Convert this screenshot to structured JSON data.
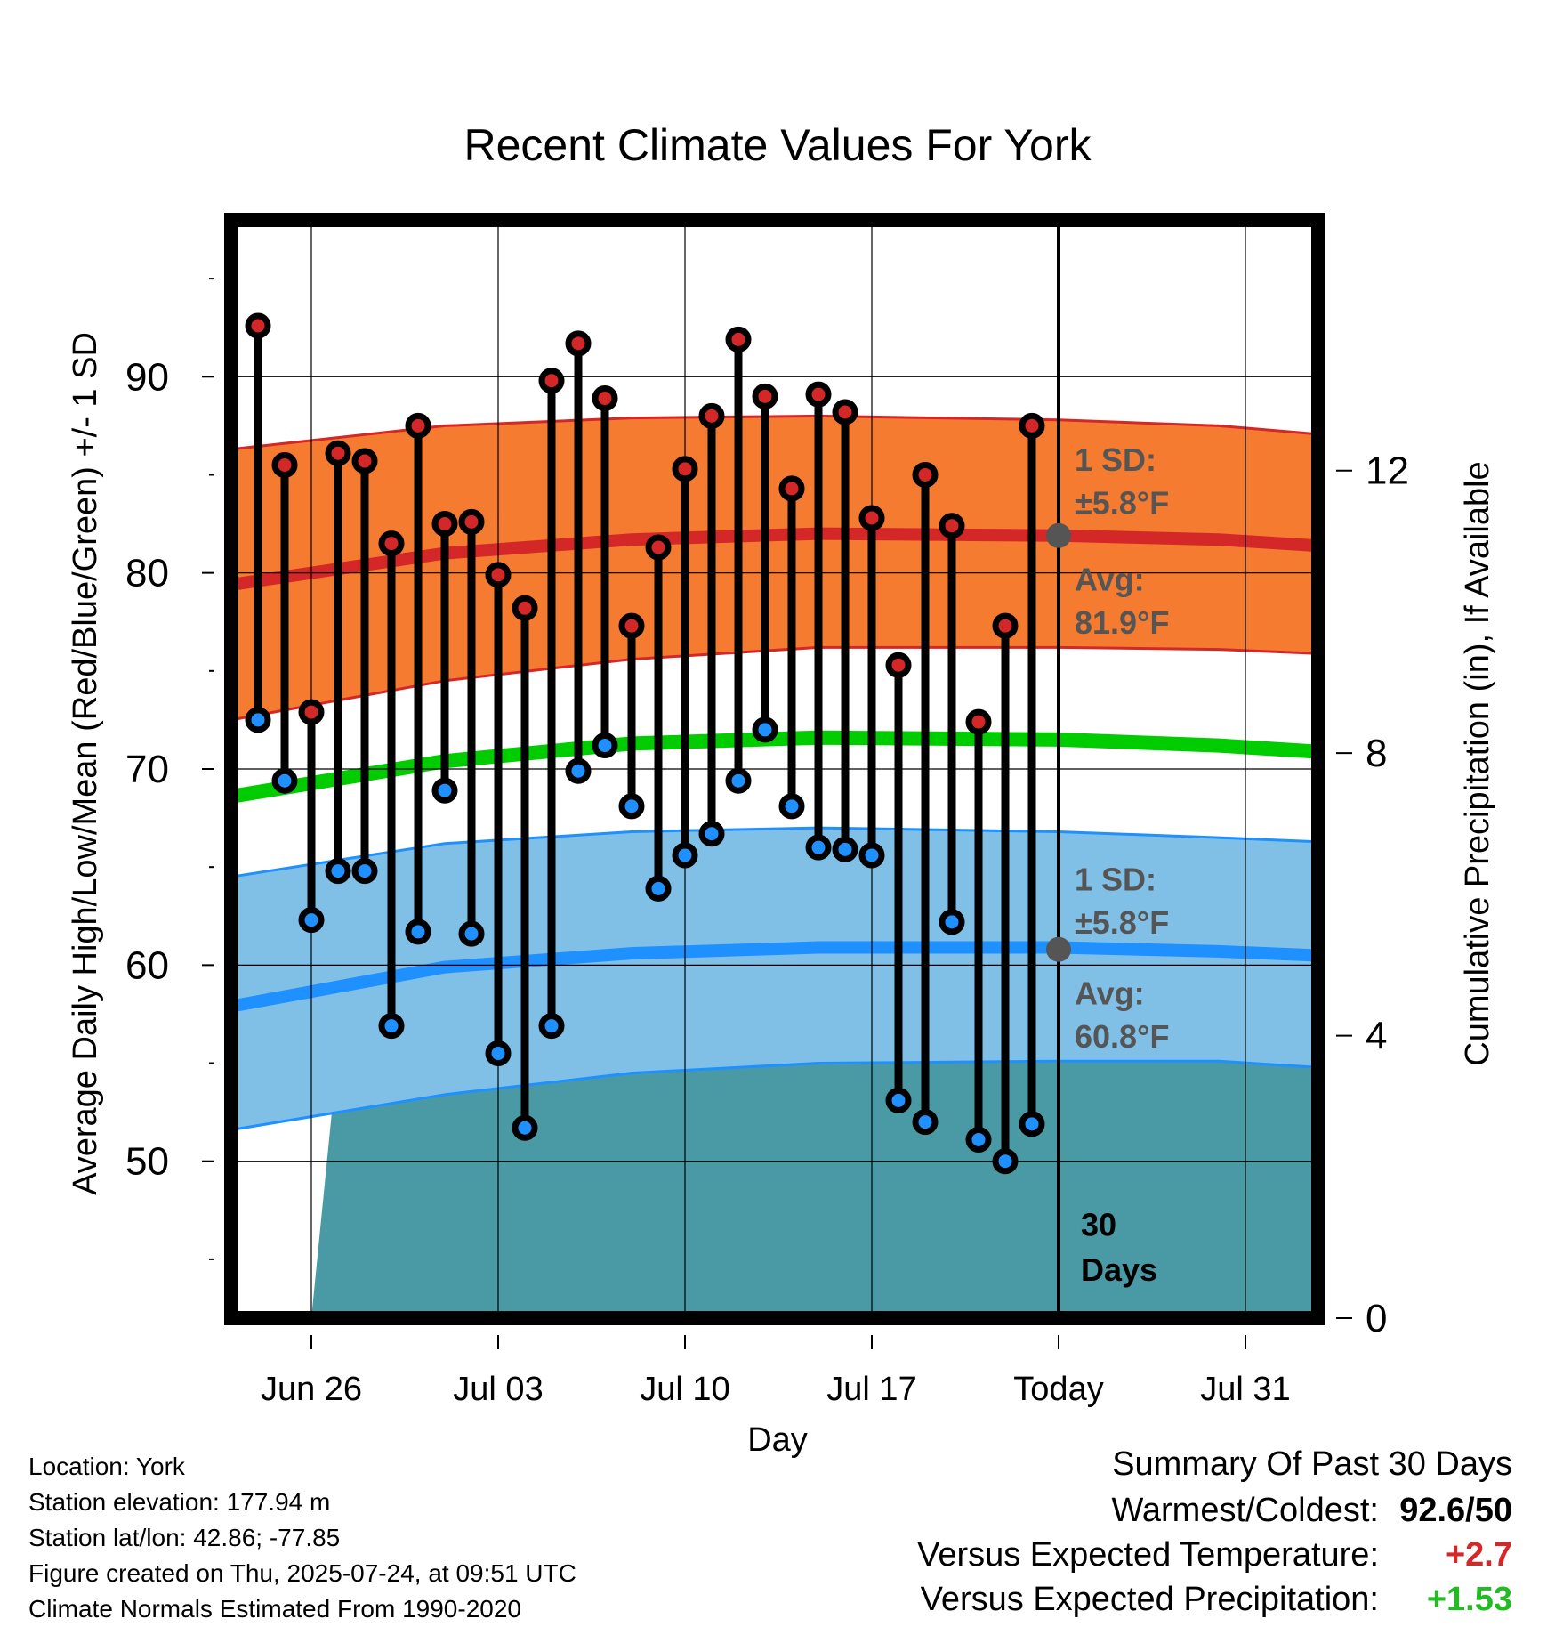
{
  "chart_data": {
    "type": "line",
    "title": "Recent Climate Values For York",
    "xlabel": "Day",
    "ylabel_left": "Average Daily High/Low/Mean (Red/Blue/Green) +/- 1 SD",
    "ylabel_right": "Cumulative Precipitation (in), If Available",
    "x_start": "Jun 23",
    "x_end": "Aug 03",
    "x_ticks": [
      {
        "day": 3,
        "label": "Jun 26"
      },
      {
        "day": 10,
        "label": "Jul 03"
      },
      {
        "day": 17,
        "label": "Jul 10"
      },
      {
        "day": 24,
        "label": "Jul 17"
      },
      {
        "day": 31,
        "label": "Today"
      },
      {
        "day": 38,
        "label": "Jul 31"
      }
    ],
    "today_day": 31,
    "ylim_left": [
      42,
      98
    ],
    "yticks_left": [
      50,
      60,
      70,
      80,
      90
    ],
    "ylim_right": [
      0,
      15.55
    ],
    "yticks_right": [
      0,
      4,
      8,
      12
    ],
    "highs": [
      92.6,
      85.5,
      72.9,
      86.1,
      85.7,
      81.5,
      87.5,
      82.5,
      82.6,
      79.9,
      78.2,
      89.8,
      91.7,
      88.9,
      77.3,
      81.3,
      85.3,
      88.0,
      91.9,
      89.0,
      84.3,
      89.1,
      88.2,
      82.8,
      75.3,
      85.0,
      82.4,
      72.4,
      77.3,
      87.5
    ],
    "lows": [
      72.5,
      69.4,
      62.3,
      64.8,
      64.8,
      56.9,
      61.7,
      68.9,
      61.6,
      55.5,
      51.7,
      56.9,
      69.9,
      71.2,
      68.1,
      63.9,
      65.6,
      66.7,
      69.4,
      72.0,
      68.1,
      66.0,
      65.9,
      65.6,
      53.1,
      52.0,
      62.2,
      51.1,
      50.0,
      51.9
    ],
    "normal_high_avg": {
      "days": [
        0,
        8,
        15,
        22,
        31,
        37,
        40.5
      ],
      "values": [
        79.4,
        81.0,
        81.7,
        82.0,
        81.9,
        81.7,
        81.4
      ]
    },
    "normal_high_upper": {
      "days": [
        0,
        8,
        15,
        22,
        31,
        37,
        40.5
      ],
      "values": [
        86.3,
        87.5,
        87.9,
        88.0,
        87.8,
        87.5,
        87.1
      ]
    },
    "normal_high_lower": {
      "days": [
        0,
        8,
        15,
        22,
        31,
        37,
        40.5
      ],
      "values": [
        72.5,
        74.5,
        75.6,
        76.2,
        76.2,
        76.1,
        75.9
      ]
    },
    "normal_mean": {
      "days": [
        0,
        8,
        15,
        22,
        31,
        37,
        40.5
      ],
      "values": [
        68.6,
        70.4,
        71.3,
        71.6,
        71.5,
        71.2,
        70.9
      ]
    },
    "normal_low_avg": {
      "days": [
        0,
        8,
        15,
        22,
        31,
        37,
        40.5
      ],
      "values": [
        57.9,
        59.9,
        60.6,
        60.9,
        60.9,
        60.7,
        60.5
      ]
    },
    "normal_low_upper": {
      "days": [
        0,
        8,
        15,
        22,
        31,
        37,
        40.5
      ],
      "values": [
        64.5,
        66.2,
        66.8,
        67.0,
        66.8,
        66.5,
        66.3
      ]
    },
    "normal_low_lower": {
      "days": [
        0,
        8,
        15,
        22,
        31,
        37,
        40.5
      ],
      "values": [
        51.6,
        53.4,
        54.5,
        55.0,
        55.1,
        55.1,
        54.8
      ]
    },
    "precip_cumulative": {
      "days": [
        3,
        4,
        6,
        7,
        8,
        16,
        19,
        20,
        22,
        23,
        40.5
      ],
      "values": [
        0,
        3.8,
        3.8,
        4.3,
        4.4,
        4.4,
        4.4,
        4.9,
        4.9,
        5.2,
        5.2
      ]
    },
    "annotations": {
      "high_sd_label": "1 SD:",
      "high_sd_value": "±5.8°F",
      "high_avg_label": "Avg:",
      "high_avg_value": "81.9°F",
      "low_sd_label": "1 SD:",
      "low_sd_value": "±5.8°F",
      "low_avg_label": "Avg:",
      "low_avg_value": "60.8°F",
      "days_count": "30",
      "days_word": "Days"
    },
    "colors": {
      "high_band": "#f47b30",
      "high_line": "#d42728",
      "low_band": "#80bfe6",
      "low_line": "#1e90ff",
      "mean_line": "#00cc00",
      "precip": "#4a9aa5",
      "high_dot": "#d42728",
      "low_dot": "#1e90ff",
      "label_gray": "#555555"
    },
    "grid": true
  },
  "footer": {
    "location": "Location: York",
    "elevation": "Station elevation: 177.94 m",
    "latlon": "Station lat/lon: 42.86; -77.85",
    "created": "Figure created on Thu, 2025-07-24, at 09:51 UTC",
    "normals": "Climate Normals Estimated From 1990-2020"
  },
  "summary": {
    "title": "Summary Of Past 30 Days",
    "warm_cold_label": "Warmest/Coldest:",
    "warm_cold_value": "92.6/50",
    "temp_label": "Versus Expected Temperature:",
    "temp_value": "+2.7",
    "precip_label": "Versus Expected Precipitation:",
    "precip_value": "+1.53",
    "temp_color": "#d42728",
    "precip_color": "#22bb22"
  }
}
